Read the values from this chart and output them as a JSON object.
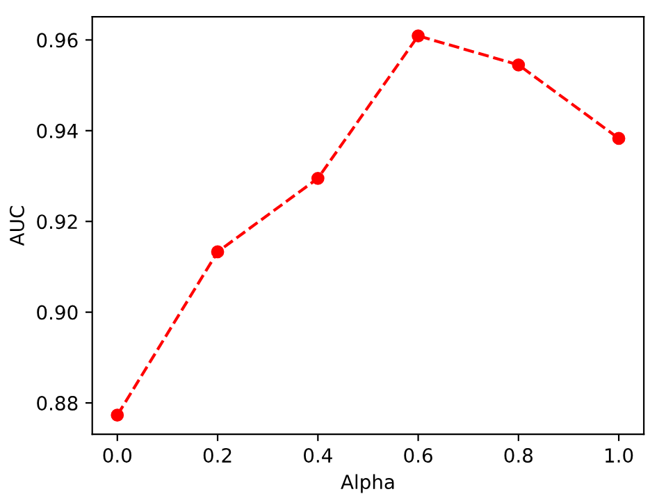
{
  "chart_data": {
    "type": "line",
    "xlabel": "Alpha",
    "ylabel": "AUC",
    "x": [
      0.0,
      0.2,
      0.4,
      0.6,
      0.8,
      1.0
    ],
    "series": [
      {
        "color": "#ff0000",
        "values": [
          0.8773,
          0.9133,
          0.9295,
          0.9609,
          0.9545,
          0.9383
        ]
      }
    ],
    "marker": "circle",
    "line_style": "dashed",
    "xlim": [
      -0.05,
      1.05
    ],
    "xticks": [
      {
        "value": 0.0,
        "label": "0.0"
      },
      0.2,
      0.4,
      0.6,
      0.8,
      {
        "value": 1.0,
        "label": "1.0"
      }
    ],
    "ylim": [
      0.8731,
      0.9651
    ],
    "yticks": [
      {
        "value": 0.88,
        "label": "0.88"
      },
      {
        "value": 0.9,
        "label": "0.90"
      },
      {
        "value": 0.92,
        "label": "0.92"
      },
      {
        "value": 0.94,
        "label": "0.94"
      },
      {
        "value": 0.96,
        "label": "0.96"
      }
    ],
    "grid": false
  }
}
